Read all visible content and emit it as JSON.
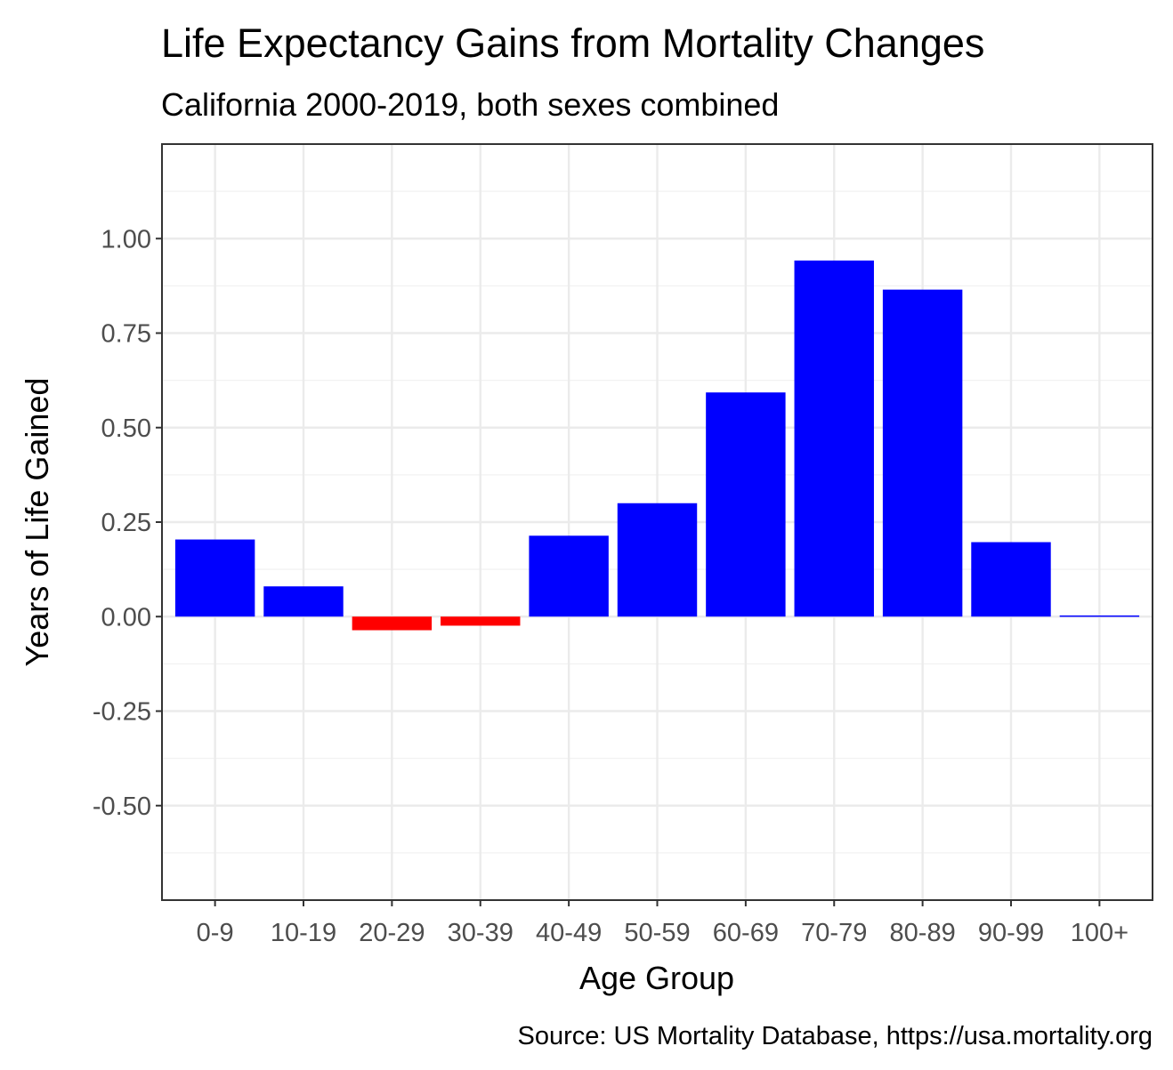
{
  "chart_data": {
    "type": "bar",
    "title": "Life Expectancy Gains from Mortality Changes",
    "subtitle": "California 2000-2019, both sexes combined",
    "xlabel": "Age Group",
    "ylabel": "Years of Life Gained",
    "caption": "Source: US Mortality Database, https://usa.mortality.org",
    "categories": [
      "0-9",
      "10-19",
      "20-29",
      "30-39",
      "40-49",
      "50-59",
      "60-69",
      "70-79",
      "80-89",
      "90-99",
      "100+"
    ],
    "values": [
      0.204,
      0.08,
      -0.036,
      -0.024,
      0.214,
      0.3,
      0.593,
      0.942,
      0.865,
      0.197,
      0.003
    ],
    "ylim": [
      -0.75,
      1.25
    ],
    "yticks": [
      -0.5,
      -0.25,
      0,
      0.25,
      0.5,
      0.75,
      1.0
    ],
    "ytick_labels": [
      "-0.50",
      "-0.25",
      "0.00",
      "0.25",
      "0.50",
      "0.75",
      "1.00"
    ],
    "grid": true,
    "legend": "none",
    "colors": {
      "positive": "#0000ff",
      "negative": "#ff0000"
    }
  }
}
